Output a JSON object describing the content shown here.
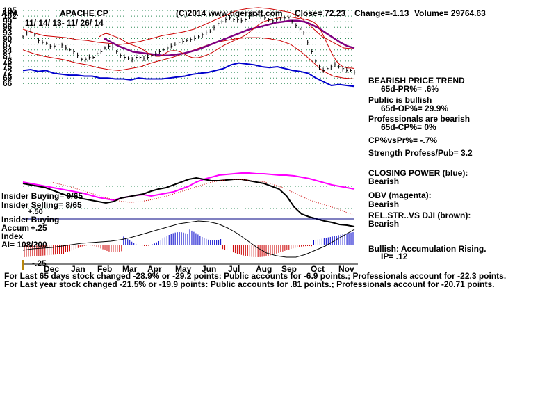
{
  "header": {
    "ticker": "APA",
    "name": "APACHE CP",
    "dates": "11/ 14/ 13- 11/ 26/ 14",
    "source": "(C)2014 www.tigersoft.com",
    "close": "Close=  72.23",
    "change": "Change=-1.13",
    "volume": "Volume=  29764.63"
  },
  "panel": {
    "l1": "BEARISH PRICE TREND",
    "l2": "65d-PR%= .6%",
    "l3": "Public is bullish",
    "l4": "65d-OP%= 29.9%",
    "l5": "Professionals are bearish",
    "l6": "65d-CP%= 0%",
    "l7": "CP%vsPr%= -.7%",
    "l8": "Strength Profess/Pub= 3.2",
    "l9": "CLOSING POWER (blue):",
    "l10": "Bearish",
    "l11": "OBV (magenta):",
    "l12": "Bearish",
    "l13": "REL.STR..VS DJI (brown):",
    "l14": "Bearish",
    "l15": "Bullish: Accumulation Rising.",
    "l16": "IP=  .12"
  },
  "insider": {
    "buying": "Insider Buying= 0/65",
    "selling": "Insider Selling= 8/65",
    "plus50": "+.50",
    "ib2": "Insider Buying"
  },
  "accum": {
    "label": "Accum",
    "plus25": "+.25",
    "index": "Index",
    "ai": "AI= 108/200",
    "minus25": "-.25"
  },
  "footer": {
    "line1": "For Last 65 days stock changed -28.9% or -29.2 points:  Public accounts for -6.9 points.;  Professionals account for -22.3 points.",
    "line2": "For Last year stock changed -21.5% or -19.9 points:  Public accounts for  .81 points.;  Professionals account for -20.71 points."
  },
  "chart_data": {
    "type": "line",
    "y_ticks": [
      105,
      102,
      99,
      96,
      93,
      90,
      87,
      84,
      81,
      78,
      75,
      72,
      69,
      66
    ],
    "months": [
      "Dec",
      "Jan",
      "Feb",
      "Mar",
      "Apr",
      "May",
      "Jun",
      "Jul",
      "Aug",
      "Sep",
      "Oct",
      "Nov"
    ],
    "ylim": [
      63.5,
      106
    ],
    "grid": true,
    "close_series": [
      91,
      93,
      94,
      92,
      89,
      88,
      87.5,
      86,
      86,
      87,
      86.5,
      85,
      84,
      83,
      81,
      79,
      79,
      80,
      80,
      82,
      83,
      85,
      86,
      85.5,
      83,
      81,
      80,
      79.5,
      79,
      80,
      80,
      79.5,
      80,
      81,
      82,
      83,
      84,
      85,
      86,
      87,
      88,
      88.5,
      89,
      89.5,
      90,
      91,
      92,
      93,
      94,
      96,
      98,
      99,
      100,
      101,
      100,
      100,
      99.5,
      100,
      102,
      103,
      103,
      102,
      101,
      100,
      99.5,
      100,
      100.5,
      101,
      101,
      99,
      97,
      95,
      93,
      88,
      83,
      78,
      75,
      73,
      74,
      75,
      76,
      75,
      74,
      73,
      73,
      72.2
    ],
    "ma_series": [
      90,
      88,
      86,
      84.5,
      83,
      82.5,
      82,
      81.5,
      81,
      81,
      81.5,
      82,
      83,
      84,
      85.5,
      87,
      88.5,
      90,
      91.5,
      93,
      94.5,
      95.5,
      96.5,
      97.5,
      98.5,
      99,
      99.5,
      99.5,
      99,
      97.5,
      95.5,
      93,
      90.5,
      88,
      86,
      85
    ],
    "upper_band": [
      95,
      93,
      91.5,
      91,
      90.5,
      89.5,
      89,
      88,
      87.5,
      86.8,
      87.5,
      88.5,
      90,
      91.5,
      92.5,
      93.5,
      95,
      97.5,
      100,
      102.5,
      105,
      106,
      106.5,
      106,
      105,
      104,
      101,
      96,
      91,
      88,
      85,
      84.5
    ],
    "lower_band": [
      84,
      82,
      80.5,
      79.5,
      78.5,
      77,
      76,
      74.5,
      73.5,
      73,
      74,
      75,
      77,
      78.5,
      80,
      82,
      84,
      86,
      88,
      89,
      90,
      90.5,
      90.5,
      90,
      89,
      87,
      83,
      78,
      73,
      70,
      69,
      68.5
    ],
    "closing_power": [
      73,
      73.5,
      72.5,
      73,
      71.5,
      71,
      70.5,
      70.5,
      70,
      70,
      69,
      69,
      68.5,
      68.5,
      68,
      69,
      68.5,
      68.5,
      68.5,
      69,
      69.5,
      70,
      71,
      71.5,
      72,
      73,
      74,
      76,
      77,
      76.5,
      76,
      75,
      74.5,
      75,
      74,
      73,
      72.5,
      71.5,
      69,
      67,
      65,
      65.5,
      65,
      64.5
    ]
  }
}
